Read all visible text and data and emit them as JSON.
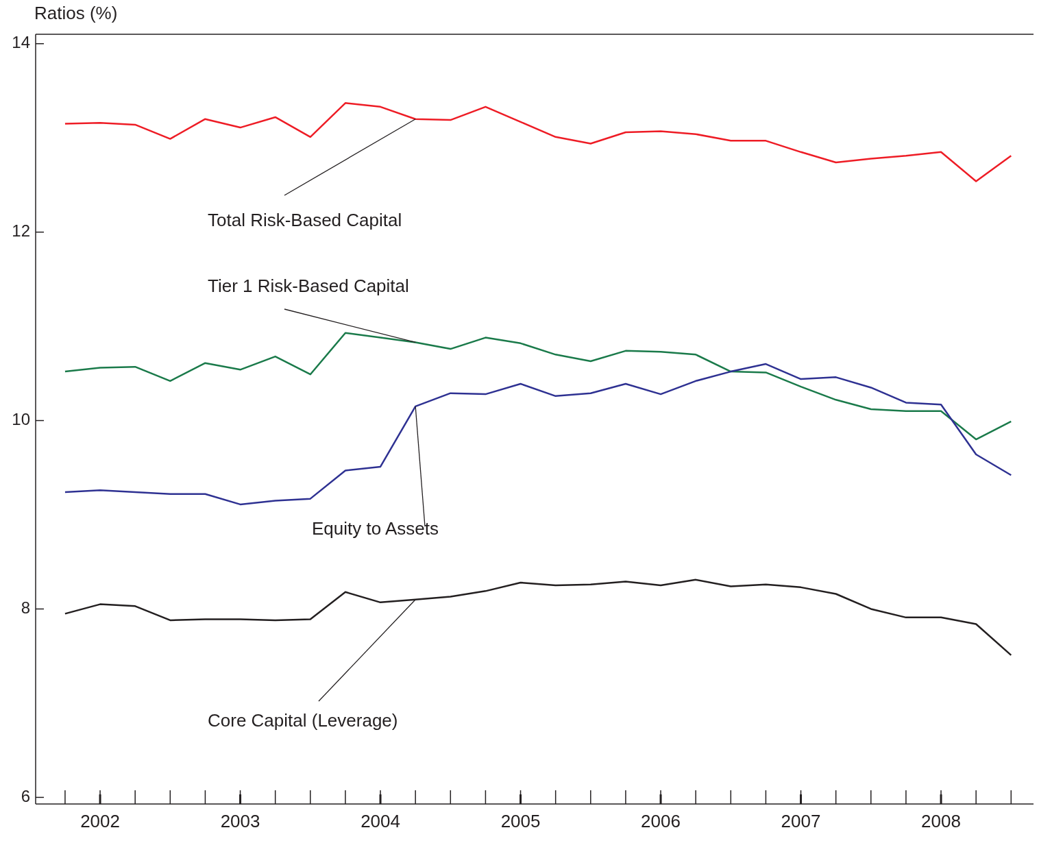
{
  "chart_data": {
    "type": "line",
    "ylabel": "Ratios (%)",
    "x": [
      2001.75,
      2002,
      2002.25,
      2002.5,
      2002.75,
      2003,
      2003.25,
      2003.5,
      2003.75,
      2004,
      2004.25,
      2004.5,
      2004.75,
      2005,
      2005.25,
      2005.5,
      2005.75,
      2006,
      2006.25,
      2006.5,
      2006.75,
      2007,
      2007.25,
      2007.5,
      2007.75,
      2008,
      2008.25,
      2008.5
    ],
    "series": [
      {
        "name": "Total Risk-Based Capital",
        "color": "#ee1c25",
        "values": [
          13.15,
          13.16,
          13.14,
          12.99,
          13.2,
          13.11,
          13.22,
          13.01,
          13.37,
          13.33,
          13.2,
          13.19,
          13.33,
          13.17,
          13.01,
          12.94,
          13.06,
          13.07,
          13.04,
          12.97,
          12.97,
          12.85,
          12.74,
          12.78,
          12.81,
          12.85,
          12.54,
          12.81
        ]
      },
      {
        "name": "Tier 1 Risk-Based Capital",
        "color": "#1a7a4a",
        "values": [
          10.52,
          10.56,
          10.57,
          10.42,
          10.61,
          10.54,
          10.68,
          10.49,
          10.93,
          10.88,
          10.83,
          10.76,
          10.88,
          10.82,
          10.7,
          10.63,
          10.74,
          10.73,
          10.7,
          10.52,
          10.51,
          10.36,
          10.22,
          10.12,
          10.1,
          10.1,
          9.8,
          9.99
        ]
      },
      {
        "name": "Equity to Assets",
        "color": "#2e3192",
        "values": [
          9.24,
          9.26,
          9.24,
          9.22,
          9.22,
          9.11,
          9.15,
          9.17,
          9.47,
          9.51,
          10.15,
          10.29,
          10.28,
          10.39,
          10.26,
          10.29,
          10.39,
          10.28,
          10.42,
          10.52,
          10.6,
          10.44,
          10.46,
          10.35,
          10.19,
          10.17,
          9.64,
          9.42
        ]
      },
      {
        "name": "Core Capital (Leverage)",
        "color": "#231f20",
        "values": [
          7.95,
          8.05,
          8.03,
          7.88,
          7.89,
          7.89,
          7.88,
          7.89,
          8.18,
          8.07,
          8.1,
          8.13,
          8.19,
          8.28,
          8.25,
          8.26,
          8.29,
          8.25,
          8.31,
          8.24,
          8.26,
          8.23,
          8.16,
          8,
          7.91,
          7.91,
          7.84,
          7.51
        ]
      }
    ],
    "xlim": [
      2001.54,
      2008.66
    ],
    "xticks": [
      2002,
      2003,
      2004,
      2005,
      2006,
      2007,
      2008
    ],
    "ylim": [
      5.93,
      14.1
    ],
    "yticks": [
      6,
      8,
      10,
      12,
      14
    ],
    "grid": false,
    "legend": false,
    "marker": "none",
    "line_style": "solid"
  }
}
